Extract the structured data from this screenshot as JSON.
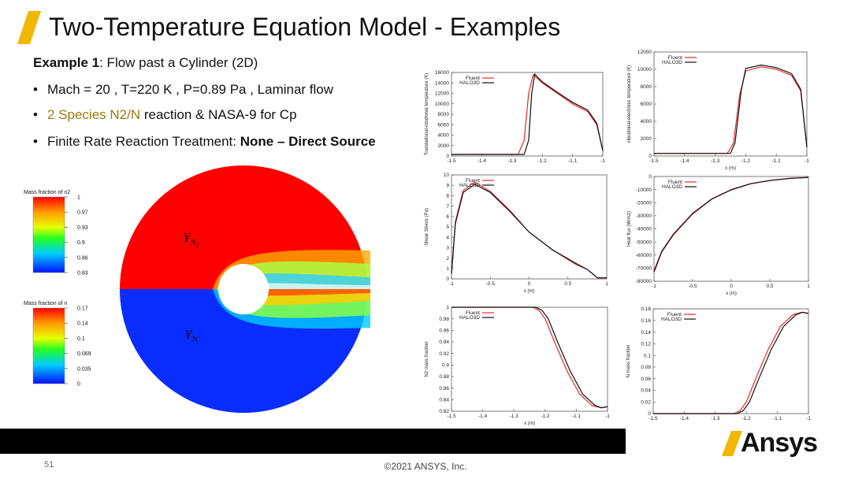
{
  "slide": {
    "title": "Two-Temperature Equation Model - Examples",
    "page_number": "51",
    "copyright": "©2021 ANSYS, Inc.",
    "brand": "Ansys"
  },
  "bullets": {
    "example_label": "Example 1",
    "example_text": ": Flow past a Cylinder  (2D)",
    "b1": "Mach = 20 , T=220 K , P=0.89 Pa , Laminar flow",
    "b2_gold": "2 Species N2/N",
    "b2_rest": " reaction & NASA-9 for Cp",
    "b3_pre": "Finite Rate Reaction Treatment: ",
    "b3_bold": "None – Direct Source"
  },
  "contour": {
    "colorbar_top": {
      "title": "Mass fraction of n2",
      "ticks": [
        "1",
        "0.97",
        "0.93",
        "0.9",
        "0.86",
        "0.83"
      ]
    },
    "colorbar_bottom": {
      "title": "Mass fraction of n",
      "ticks": [
        "0.17",
        "0.14",
        "0.1",
        "0.069",
        "0.035",
        "0"
      ]
    },
    "label_top": "Y",
    "label_top_sub": "N",
    "label_top_subsub": "2",
    "label_bottom": "Y",
    "label_bottom_sub": "N",
    "colors": {
      "red": "#ff0000",
      "blue": "#0a2dff"
    }
  },
  "chart_data": [
    {
      "type": "line",
      "xlabel": "",
      "ylabel": "Translational-rotational temperature (K)",
      "xlim": [
        -1.5,
        -1
      ],
      "ylim": [
        0,
        16000
      ],
      "xticks": [
        "-1.5",
        "-1.4",
        "-1.3",
        "-1.2",
        "-1.1",
        "-1"
      ],
      "yticks": [
        "0",
        "2000",
        "4000",
        "6000",
        "8000",
        "10000",
        "12000",
        "14000",
        "16000"
      ],
      "series": [
        {
          "name": "Fluent",
          "x": [
            -1.5,
            -1.28,
            -1.26,
            -1.245,
            -1.23,
            -1.2,
            -1.15,
            -1.1,
            -1.05,
            -1.02,
            -1.0
          ],
          "y": [
            300,
            300,
            3000,
            12000,
            15600,
            14000,
            12000,
            10000,
            8500,
            6000,
            1000
          ]
        },
        {
          "name": "HALO3D",
          "x": [
            -1.5,
            -1.26,
            -1.245,
            -1.235,
            -1.225,
            -1.2,
            -1.15,
            -1.1,
            -1.05,
            -1.02,
            -1.0
          ],
          "y": [
            300,
            300,
            3000,
            12000,
            15700,
            14200,
            12200,
            10300,
            8800,
            6300,
            1000
          ]
        }
      ]
    },
    {
      "type": "line",
      "xlabel": "x (m)",
      "ylabel": "vibrational-electronic temperature (K)",
      "xlim": [
        -1.5,
        -1
      ],
      "ylim": [
        0,
        12000
      ],
      "xticks": [
        "-1.5",
        "-1.4",
        "-1.3",
        "-1.2",
        "-1.1",
        "-1"
      ],
      "yticks": [
        "0",
        "2000",
        "4000",
        "6000",
        "8000",
        "10000",
        "12000"
      ],
      "series": [
        {
          "name": "Fluent",
          "x": [
            -1.5,
            -1.26,
            -1.24,
            -1.22,
            -1.2,
            -1.15,
            -1.1,
            -1.05,
            -1.02,
            -1.0
          ],
          "y": [
            300,
            300,
            1500,
            7000,
            9800,
            10300,
            10000,
            9300,
            7500,
            1000
          ]
        },
        {
          "name": "HALO3D",
          "x": [
            -1.5,
            -1.25,
            -1.235,
            -1.215,
            -1.2,
            -1.15,
            -1.1,
            -1.05,
            -1.02,
            -1.0
          ],
          "y": [
            300,
            300,
            1500,
            7500,
            10100,
            10500,
            10200,
            9500,
            7700,
            1000
          ]
        }
      ]
    },
    {
      "type": "line",
      "xlabel": "x (m)",
      "ylabel": "Shear Stress (Pa)",
      "xlim": [
        -1,
        1
      ],
      "ylim": [
        0,
        10
      ],
      "xticks": [
        "-1",
        "-0.5",
        "0",
        "0.5",
        "1"
      ],
      "yticks": [
        "0",
        "1",
        "2",
        "3",
        "4",
        "5",
        "6",
        "7",
        "8",
        "9",
        "10"
      ],
      "series": [
        {
          "name": "Fluent",
          "x": [
            -1,
            -0.95,
            -0.85,
            -0.7,
            -0.5,
            -0.25,
            0,
            0.3,
            0.6,
            0.75,
            0.82,
            0.88,
            1.0
          ],
          "y": [
            0.5,
            5.5,
            8.5,
            9.3,
            8.4,
            6.6,
            4.5,
            2.8,
            1.4,
            0.9,
            0.5,
            0.1,
            0.1
          ]
        },
        {
          "name": "HALO3D",
          "x": [
            -1,
            -0.95,
            -0.85,
            -0.7,
            -0.5,
            -0.25,
            0,
            0.3,
            0.6,
            0.75,
            0.83,
            0.88,
            1.0
          ],
          "y": [
            0.5,
            5.3,
            8.3,
            9.1,
            8.3,
            6.5,
            4.5,
            2.8,
            1.5,
            0.9,
            0.4,
            0.1,
            0.1
          ]
        }
      ]
    },
    {
      "type": "line",
      "xlabel": "x (m)",
      "ylabel": "Heat flux (W/m2)",
      "xlim": [
        -1,
        1
      ],
      "ylim": [
        -80000,
        0
      ],
      "xticks": [
        "-1",
        "-0.5",
        "0",
        "0.5",
        "1"
      ],
      "yticks": [
        "-80000",
        "-70000",
        "-60000",
        "-50000",
        "-40000",
        "-30000",
        "-20000",
        "-10000",
        "0"
      ],
      "series": [
        {
          "name": "Fluent",
          "x": [
            -1,
            -0.9,
            -0.75,
            -0.5,
            -0.25,
            0,
            0.25,
            0.5,
            0.75,
            1.0
          ],
          "y": [
            -72000,
            -57000,
            -44000,
            -28000,
            -17000,
            -10000,
            -5500,
            -3000,
            -1500,
            -700
          ]
        },
        {
          "name": "HALO3D",
          "x": [
            -1,
            -0.9,
            -0.75,
            -0.5,
            -0.25,
            0,
            0.25,
            0.5,
            0.75,
            1.0
          ],
          "y": [
            -73000,
            -57500,
            -44500,
            -28500,
            -17200,
            -10200,
            -5600,
            -3100,
            -1500,
            -700
          ]
        }
      ]
    },
    {
      "type": "line",
      "xlabel": "x (m)",
      "ylabel": "N2 mass fraction",
      "xlim": [
        -1.5,
        -1
      ],
      "ylim": [
        0.82,
        1
      ],
      "xticks": [
        "-1.5",
        "-1.4",
        "-1.3",
        "-1.2",
        "-1.1",
        "-1"
      ],
      "yticks": [
        "0.82",
        "0.84",
        "0.86",
        "0.88",
        "0.9",
        "0.92",
        "0.94",
        "0.96",
        "0.98",
        "1"
      ],
      "series": [
        {
          "name": "Fluent",
          "x": [
            -1.5,
            -1.24,
            -1.22,
            -1.2,
            -1.17,
            -1.13,
            -1.09,
            -1.05,
            -1.02,
            -1.0
          ],
          "y": [
            1,
            1,
            0.995,
            0.98,
            0.94,
            0.89,
            0.85,
            0.83,
            0.826,
            0.828
          ]
        },
        {
          "name": "HALO3D",
          "x": [
            -1.5,
            -1.23,
            -1.21,
            -1.19,
            -1.16,
            -1.12,
            -1.08,
            -1.04,
            -1.02,
            -1.0
          ],
          "y": [
            1,
            1,
            0.995,
            0.98,
            0.94,
            0.89,
            0.85,
            0.83,
            0.826,
            0.828
          ]
        }
      ]
    },
    {
      "type": "line",
      "xlabel": "",
      "ylabel": "N mass fraction",
      "xlim": [
        -1.5,
        -1
      ],
      "ylim": [
        0,
        0.18
      ],
      "xticks": [
        "-1.5",
        "-1.4",
        "-1.3",
        "-1.2",
        "-1.1",
        "-1"
      ],
      "yticks": [
        "0",
        "0.02",
        "0.04",
        "0.06",
        "0.08",
        "0.1",
        "0.12",
        "0.14",
        "0.16",
        "0.18"
      ],
      "series": [
        {
          "name": "Fluent",
          "x": [
            -1.5,
            -1.24,
            -1.22,
            -1.2,
            -1.17,
            -1.13,
            -1.09,
            -1.05,
            -1.02,
            -1.0
          ],
          "y": [
            0,
            0,
            0.005,
            0.02,
            0.06,
            0.11,
            0.15,
            0.17,
            0.174,
            0.172
          ]
        },
        {
          "name": "HALO3D",
          "x": [
            -1.5,
            -1.23,
            -1.21,
            -1.19,
            -1.16,
            -1.12,
            -1.08,
            -1.04,
            -1.02,
            -1.0
          ],
          "y": [
            0,
            0,
            0.005,
            0.02,
            0.06,
            0.11,
            0.15,
            0.17,
            0.174,
            0.172
          ]
        }
      ]
    }
  ]
}
